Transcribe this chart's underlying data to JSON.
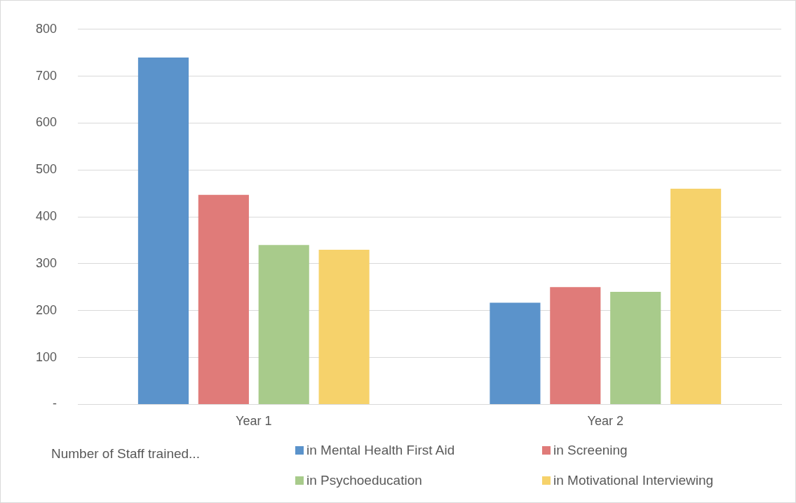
{
  "chart_data": {
    "type": "bar",
    "categories": [
      "Year 1",
      "Year 2"
    ],
    "series": [
      {
        "name": "in Mental Health First Aid",
        "color": "#5b93cb",
        "values": [
          740,
          217
        ]
      },
      {
        "name": "in Screening",
        "color": "#e07b79",
        "values": [
          447,
          250
        ]
      },
      {
        "name": "in Psychoeducation",
        "color": "#a8cb8b",
        "values": [
          340,
          240
        ]
      },
      {
        "name": "in Motivational Interviewing",
        "color": "#f6d26b",
        "values": [
          330,
          460
        ]
      }
    ],
    "ylim": [
      0,
      800
    ],
    "yticks": [
      {
        "value": 0,
        "label": "-"
      },
      100,
      200,
      300,
      400,
      500,
      600,
      700,
      800
    ],
    "grid": "y",
    "legend": "bottom",
    "legend_title": "Number of Staff trained..."
  }
}
